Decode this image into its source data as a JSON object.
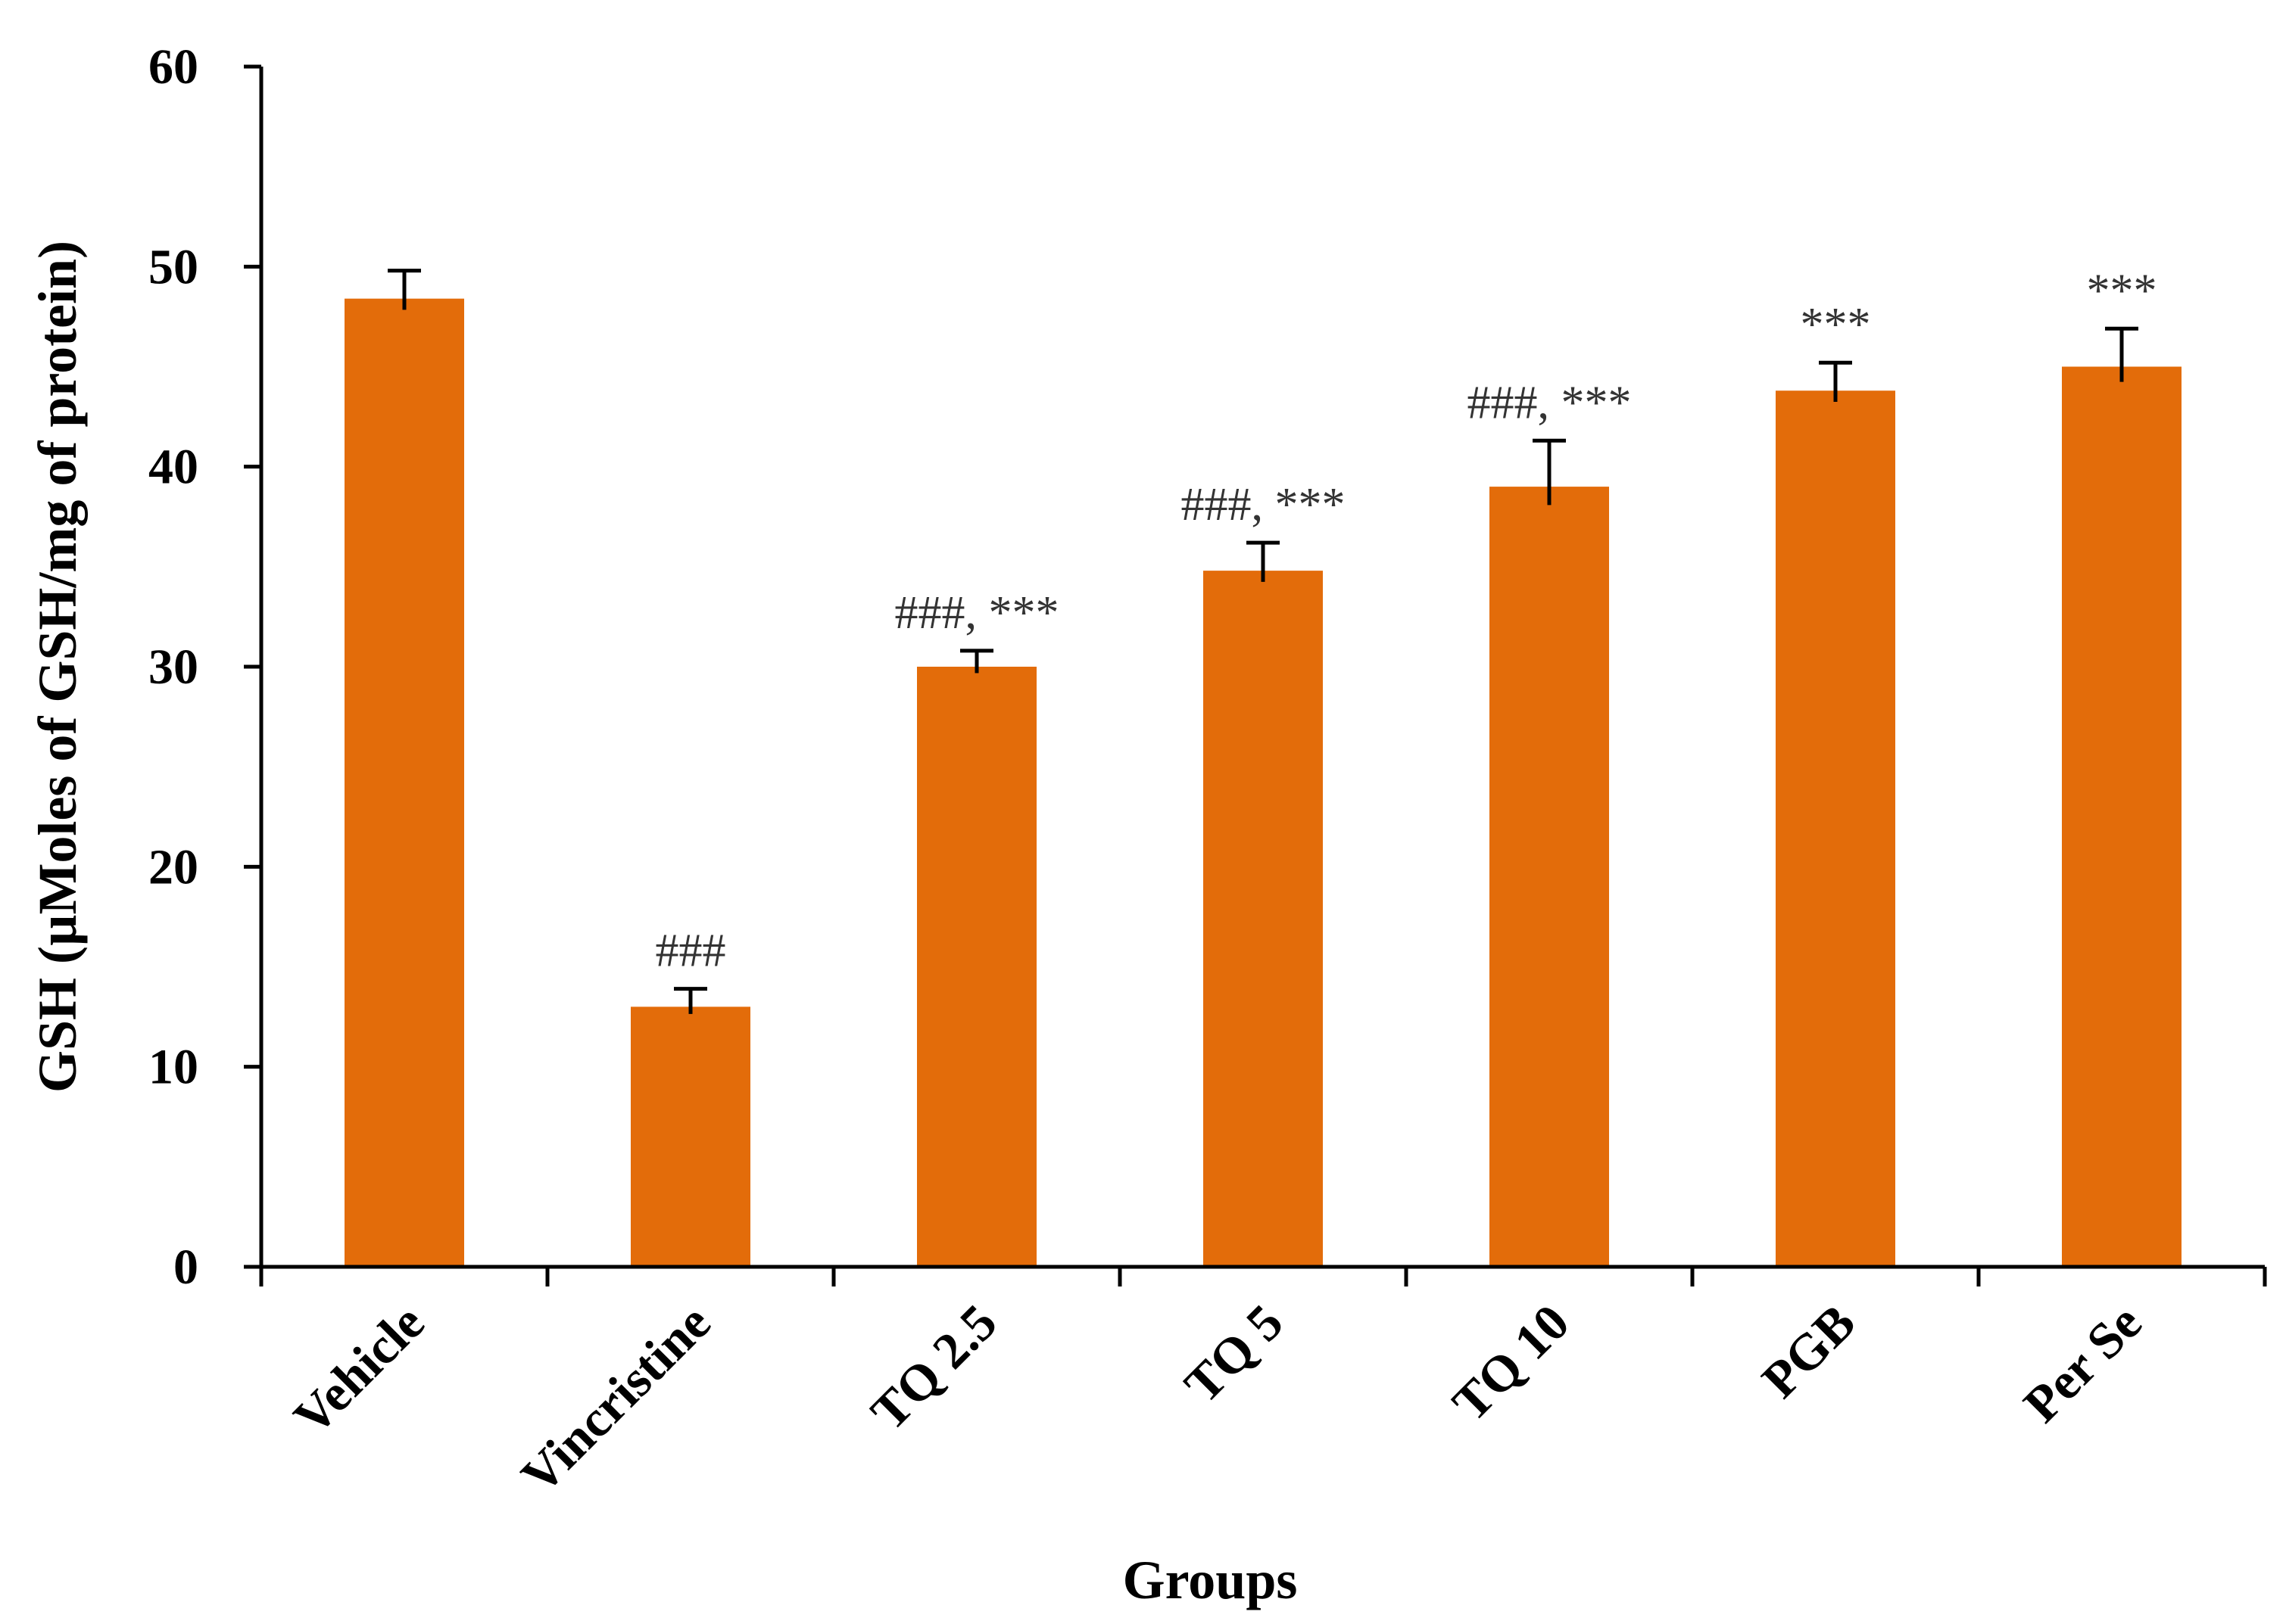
{
  "chart_data": {
    "type": "bar",
    "categories": [
      "Vehicle",
      "Vincristine",
      "TQ 2.5",
      "TQ 5",
      "TQ 10",
      "PGB",
      "Per Se"
    ],
    "values": [
      48.4,
      13.0,
      30.0,
      34.8,
      39.0,
      43.8,
      45.0
    ],
    "errors": [
      1.4,
      0.9,
      0.8,
      1.4,
      2.3,
      1.4,
      1.9
    ],
    "annotations": [
      "",
      "###",
      "###, ***",
      "###, ***",
      "###, ***",
      "***",
      "***"
    ],
    "title": "",
    "xlabel": "Groups",
    "ylabel": "GSH (µMoles of GSH/mg of protein)",
    "ylim": [
      0,
      60
    ],
    "yticks": [
      "0",
      "10",
      "20",
      "30",
      "40",
      "50",
      "60"
    ],
    "bar_color": "#E36C0A",
    "grid": false,
    "legend": "none"
  }
}
